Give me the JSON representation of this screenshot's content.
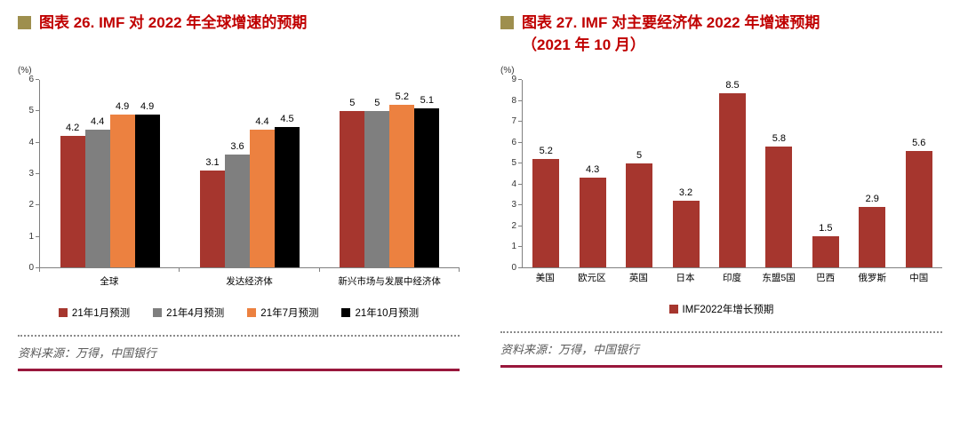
{
  "chart_data": [
    {
      "type": "bar",
      "title_lines": [
        "图表 26. IMF 对 2022 年全球增速的预期",
        ""
      ],
      "unit": "(%)",
      "categories": [
        "全球",
        "发达经济体",
        "新兴市场与发展中经济体"
      ],
      "series": [
        {
          "name": "21年1月预测",
          "color": "#A6362E",
          "values": [
            4.2,
            3.1,
            5
          ]
        },
        {
          "name": "21年4月预测",
          "color": "#7F7F7F",
          "values": [
            4.4,
            3.6,
            5
          ]
        },
        {
          "name": "21年7月预测",
          "color": "#EC8140",
          "values": [
            4.9,
            4.4,
            5.2
          ]
        },
        {
          "name": "21年10月预测",
          "color": "#000000",
          "values": [
            4.9,
            4.5,
            5.1
          ]
        }
      ],
      "ylim": [
        0,
        6
      ],
      "ytick_step": 1,
      "grid": false,
      "legend_position": "bottom",
      "source": "资料来源：万得，中国银行"
    },
    {
      "type": "bar",
      "title_lines": [
        "图表 27. IMF 对主要经济体 2022 年增速预期",
        "（2021 年 10 月）"
      ],
      "unit": "(%)",
      "categories": [
        "美国",
        "欧元区",
        "英国",
        "日本",
        "印度",
        "东盟5国",
        "巴西",
        "俄罗斯",
        "中国"
      ],
      "series": [
        {
          "name": "IMF2022年增长预期",
          "color": "#A6362E",
          "values": [
            5.2,
            4.3,
            5,
            3.2,
            8.5,
            5.8,
            1.5,
            2.9,
            5.6
          ]
        }
      ],
      "ylim": [
        0,
        9
      ],
      "ytick_step": 1,
      "grid": false,
      "legend_position": "bottom",
      "source": "资料来源：万得，中国银行"
    }
  ],
  "theme": {
    "title_color": "#C00000",
    "marker_color": "#9E8F4E",
    "axis_color": "#808080",
    "source_color": "#595959",
    "bottom_rule_color": "#99173C"
  }
}
